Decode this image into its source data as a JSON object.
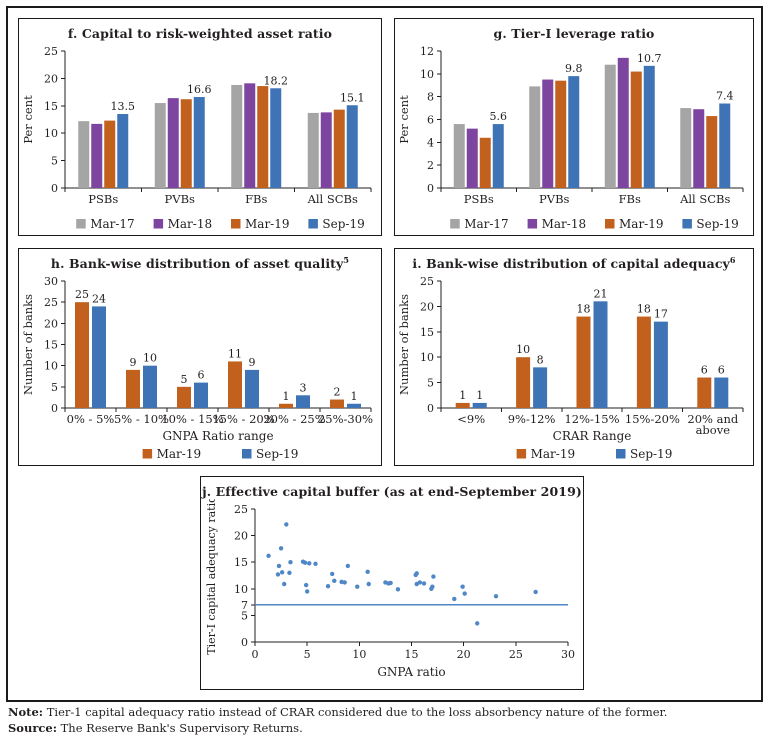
{
  "figure": {
    "note_label": "Note:",
    "note_text": "Tier-1 capital adequacy ratio instead of CRAR considered due to the loss absorbency nature of the former.",
    "source_label": "Source:",
    "source_text": "The Reserve Bank's Supervisory Returns."
  },
  "palette": {
    "gray": "#a5a5a5",
    "purple": "#7e45a0",
    "orange": "#c2611e",
    "blue": "#3e74b6",
    "scatter": "#4f87c7",
    "refline": "#4f87c7",
    "axis": "#231f20"
  },
  "chart_data": [
    {
      "id": "f",
      "type": "bar",
      "title": "f. Capital to risk-weighted asset ratio",
      "title_sup": "",
      "ylabel": "Per cent",
      "ylim": [
        0,
        25
      ],
      "ytick_step": 5,
      "categories": [
        "PSBs",
        "PVBs",
        "FBs",
        "All SCBs"
      ],
      "series": [
        {
          "name": "Mar-17",
          "color": "gray",
          "values": [
            12.2,
            15.5,
            18.8,
            13.7
          ]
        },
        {
          "name": "Mar-18",
          "color": "purple",
          "values": [
            11.7,
            16.4,
            19.1,
            13.8
          ]
        },
        {
          "name": "Mar-19",
          "color": "orange",
          "values": [
            12.3,
            16.2,
            18.6,
            14.3
          ]
        },
        {
          "name": "Sep-19",
          "color": "blue",
          "values": [
            13.5,
            16.6,
            18.2,
            15.1
          ]
        }
      ],
      "labels_on": "last",
      "legend_position": "bottom",
      "grid": false
    },
    {
      "id": "g",
      "type": "bar",
      "title": "g. Tier-I leverage ratio",
      "title_sup": "",
      "ylabel": "Per cent",
      "ylim": [
        0,
        12
      ],
      "ytick_step": 2,
      "categories": [
        "PSBs",
        "PVBs",
        "FBs",
        "All SCBs"
      ],
      "series": [
        {
          "name": "Mar-17",
          "color": "gray",
          "values": [
            5.6,
            8.9,
            10.8,
            7.0
          ]
        },
        {
          "name": "Mar-18",
          "color": "purple",
          "values": [
            5.2,
            9.5,
            11.4,
            6.9
          ]
        },
        {
          "name": "Mar-19",
          "color": "orange",
          "values": [
            4.4,
            9.4,
            10.2,
            6.3
          ]
        },
        {
          "name": "Sep-19",
          "color": "blue",
          "values": [
            5.6,
            9.8,
            10.7,
            7.4
          ]
        }
      ],
      "labels_on": "last",
      "legend_position": "bottom",
      "grid": false
    },
    {
      "id": "h",
      "type": "bar",
      "title": "h. Bank-wise distribution of asset quality",
      "title_sup": "5",
      "ylabel": "Number of banks",
      "xlabel": "GNPA Ratio range",
      "ylim": [
        0,
        30
      ],
      "ytick_step": 5,
      "categories": [
        "0% - 5%",
        "5% - 10%",
        "10% - 15%",
        "15% - 20%",
        "20% - 25%",
        "25%-30%"
      ],
      "series": [
        {
          "name": "Mar-19",
          "color": "orange",
          "values": [
            25,
            9,
            5,
            11,
            1,
            2
          ]
        },
        {
          "name": "Sep-19",
          "color": "blue",
          "values": [
            24,
            10,
            6,
            9,
            3,
            1
          ]
        }
      ],
      "labels_on": "all",
      "legend_position": "bottom",
      "grid": false
    },
    {
      "id": "i",
      "type": "bar",
      "title": "i. Bank-wise distribution of capital adequacy",
      "title_sup": "6",
      "ylabel": "Number of banks",
      "xlabel": "CRAR Range",
      "ylim": [
        0,
        25
      ],
      "ytick_step": 5,
      "categories": [
        "<9%",
        "9%-12%",
        "12%-15%",
        "15%-20%",
        "20% and\nabove"
      ],
      "series": [
        {
          "name": "Mar-19",
          "color": "orange",
          "values": [
            1,
            10,
            18,
            18,
            6
          ]
        },
        {
          "name": "Sep-19",
          "color": "blue",
          "values": [
            1,
            8,
            21,
            17,
            6
          ]
        }
      ],
      "labels_on": "all",
      "legend_position": "bottom",
      "grid": false
    },
    {
      "id": "j",
      "type": "scatter",
      "title": "j. Effective capital buffer (as at end-September 2019)",
      "title_sup": "",
      "xlabel": "GNPA ratio",
      "ylabel": "Tier-I capital adequacy ratio",
      "xlim": [
        0,
        30
      ],
      "ylim": [
        0,
        25
      ],
      "xticks": [
        0,
        5,
        10,
        15,
        20,
        25,
        30
      ],
      "yticks": [
        0,
        5,
        7,
        10,
        15,
        20,
        25
      ],
      "refline_y": 7,
      "grid": false,
      "points": [
        [
          1.3,
          16.2
        ],
        [
          2.2,
          12.7
        ],
        [
          2.3,
          14.3
        ],
        [
          2.5,
          17.6
        ],
        [
          2.6,
          13.1
        ],
        [
          2.8,
          10.9
        ],
        [
          3.0,
          22.1
        ],
        [
          3.3,
          13.0
        ],
        [
          3.4,
          15.0
        ],
        [
          4.6,
          15.1
        ],
        [
          4.8,
          14.9
        ],
        [
          4.9,
          10.7
        ],
        [
          5.0,
          9.5
        ],
        [
          5.2,
          14.8
        ],
        [
          5.8,
          14.7
        ],
        [
          7.0,
          10.5
        ],
        [
          7.4,
          12.8
        ],
        [
          7.6,
          11.5
        ],
        [
          8.3,
          11.3
        ],
        [
          8.6,
          11.2
        ],
        [
          8.9,
          14.3
        ],
        [
          9.8,
          10.4
        ],
        [
          10.8,
          13.2
        ],
        [
          10.9,
          10.9
        ],
        [
          12.5,
          11.2
        ],
        [
          12.8,
          11.0
        ],
        [
          13.0,
          11.1
        ],
        [
          13.7,
          9.9
        ],
        [
          15.4,
          12.6
        ],
        [
          15.5,
          12.9
        ],
        [
          15.5,
          10.9
        ],
        [
          15.8,
          11.2
        ],
        [
          16.2,
          11.0
        ],
        [
          16.9,
          10.0
        ],
        [
          17.0,
          10.4
        ],
        [
          17.1,
          12.3
        ],
        [
          19.1,
          8.1
        ],
        [
          19.9,
          10.4
        ],
        [
          20.1,
          9.1
        ],
        [
          21.3,
          3.5
        ],
        [
          23.1,
          8.6
        ],
        [
          26.9,
          9.4
        ]
      ]
    }
  ]
}
